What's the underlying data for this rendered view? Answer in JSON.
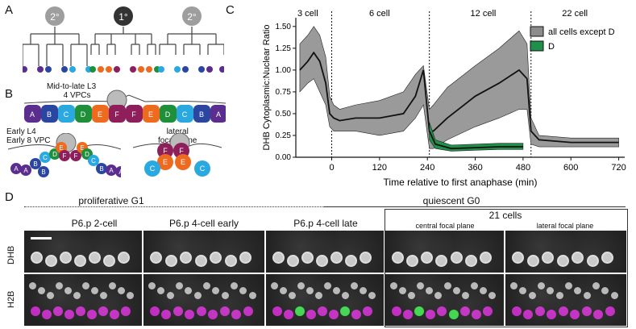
{
  "panels": {
    "a": "A",
    "b": "B",
    "c": "C",
    "d": "D"
  },
  "panelA": {
    "nodes": [
      {
        "label": "2°",
        "color": "#9e9e9e"
      },
      {
        "label": "1°",
        "color": "#333333"
      },
      {
        "label": "2°",
        "color": "#9e9e9e"
      }
    ],
    "leaf_colors": [
      "#5b2d8e",
      "#5b2d8e",
      "#2a46a0",
      "#2a46a0",
      "#2aa8e0",
      "#2aa8e0",
      "#1f8f3a",
      "#ee6a1e",
      "#ee6a1e",
      "#8e1f5a",
      "#8e1f5a",
      "#ee6a1e",
      "#ee6a1e",
      "#1f8f3a",
      "#2aa8e0",
      "#2aa8e0",
      "#2a46a0",
      "#2a46a0",
      "#5b2d8e",
      "#5b2d8e"
    ]
  },
  "panelB": {
    "top_caption_line1": "Mid-to-late L3",
    "top_caption_line2": "4 VPCs",
    "top_cells": [
      {
        "label": "A",
        "color": "#5b2d8e"
      },
      {
        "label": "B",
        "color": "#2a46a0"
      },
      {
        "label": "C",
        "color": "#2aa8e0"
      },
      {
        "label": "D",
        "color": "#1f8f3a"
      },
      {
        "label": "E",
        "color": "#ee6a1e"
      },
      {
        "label": "F",
        "color": "#8e1f5a"
      },
      {
        "label": "F",
        "color": "#8e1f5a"
      },
      {
        "label": "E",
        "color": "#ee6a1e"
      },
      {
        "label": "D",
        "color": "#1f8f3a"
      },
      {
        "label": "C",
        "color": "#2aa8e0"
      },
      {
        "label": "B",
        "color": "#2a46a0"
      },
      {
        "label": "A",
        "color": "#5b2d8e"
      }
    ],
    "left_caption_line1": "Early L4",
    "left_caption_line2": "Early 8 VPC",
    "right_caption_line1": "lateral",
    "right_caption_line2": "focal plane",
    "left_labels": [
      "A",
      "A",
      "B",
      "B",
      "C",
      "D",
      "E",
      "F",
      "F",
      "E",
      "D",
      "C",
      "B",
      "A",
      "A"
    ],
    "right_labels": [
      "F",
      "F",
      "E",
      "E",
      "C",
      "C"
    ]
  },
  "panelC": {
    "stage_labels": [
      "3 cell",
      "6 cell",
      "12 cell",
      "22 cell"
    ],
    "ylabel": "DHB Cytoplasmic:Nuclear Ratio",
    "xlabel": "Time relative to first anaphase (min)",
    "legend": [
      "all cells except D",
      "D"
    ],
    "legend_colors": [
      "#8c8c8c",
      "#1f8f4a"
    ]
  },
  "chart_data": {
    "type": "line",
    "xlabel": "Time relative to first anaphase (min)",
    "ylabel": "DHB Cytoplasmic:Nuclear Ratio",
    "xlim": [
      -90,
      735
    ],
    "ylim": [
      0,
      1.6
    ],
    "xticks": [
      0,
      120,
      240,
      360,
      480,
      600,
      720
    ],
    "yticks": [
      0.0,
      0.25,
      0.5,
      0.75,
      1.0,
      1.25,
      1.5
    ],
    "xtick_labels": [
      "0",
      "120",
      "240",
      "360",
      "480",
      "600",
      "720"
    ],
    "ytick_labels": [
      "0.00",
      "0.25",
      "0.50",
      "0.75",
      "1.00",
      "1.25",
      "1.50"
    ],
    "stage_boundaries": [
      0,
      245,
      500
    ],
    "series": [
      {
        "name": "all cells except D",
        "x": [
          -80,
          -60,
          -45,
          -30,
          -15,
          -5,
          5,
          20,
          60,
          120,
          180,
          210,
          230,
          245,
          255,
          290,
          360,
          420,
          470,
          490,
          500,
          520,
          600,
          720
        ],
        "mean": [
          1.0,
          1.1,
          1.2,
          1.1,
          0.85,
          0.5,
          0.45,
          0.42,
          0.45,
          0.45,
          0.5,
          0.7,
          1.0,
          0.3,
          0.3,
          0.45,
          0.7,
          0.85,
          1.0,
          0.9,
          0.3,
          0.2,
          0.17,
          0.17
        ],
        "lower": [
          0.75,
          0.85,
          0.9,
          0.75,
          0.6,
          0.35,
          0.3,
          0.3,
          0.3,
          0.25,
          0.3,
          0.45,
          0.6,
          0.1,
          0.1,
          0.2,
          0.35,
          0.45,
          0.55,
          0.55,
          0.15,
          0.12,
          0.12,
          0.12
        ],
        "upper": [
          1.3,
          1.4,
          1.5,
          1.4,
          1.15,
          0.7,
          0.6,
          0.55,
          0.6,
          0.65,
          0.75,
          0.95,
          1.05,
          0.55,
          0.6,
          0.8,
          1.05,
          1.25,
          1.45,
          1.3,
          0.45,
          0.25,
          0.22,
          0.22
        ]
      },
      {
        "name": "D",
        "x": [
          245,
          260,
          300,
          360,
          420,
          480
        ],
        "mean": [
          0.3,
          0.15,
          0.1,
          0.11,
          0.12,
          0.12
        ],
        "lower": [
          0.2,
          0.1,
          0.07,
          0.08,
          0.09,
          0.09
        ],
        "upper": [
          0.4,
          0.2,
          0.14,
          0.15,
          0.16,
          0.16
        ]
      }
    ]
  },
  "panelD": {
    "phase1": "proliferative G1",
    "phase2": "quiescent G0",
    "group_title": "21 cells",
    "row_labels": [
      "DHB",
      "H2B"
    ],
    "columns": [
      {
        "title": "P6.p 2-cell"
      },
      {
        "title": "P6.p 4-cell early"
      },
      {
        "title": "P6.p 4-cell late"
      },
      {
        "title": "central focal plane"
      },
      {
        "title": "lateral focal plane"
      }
    ]
  }
}
